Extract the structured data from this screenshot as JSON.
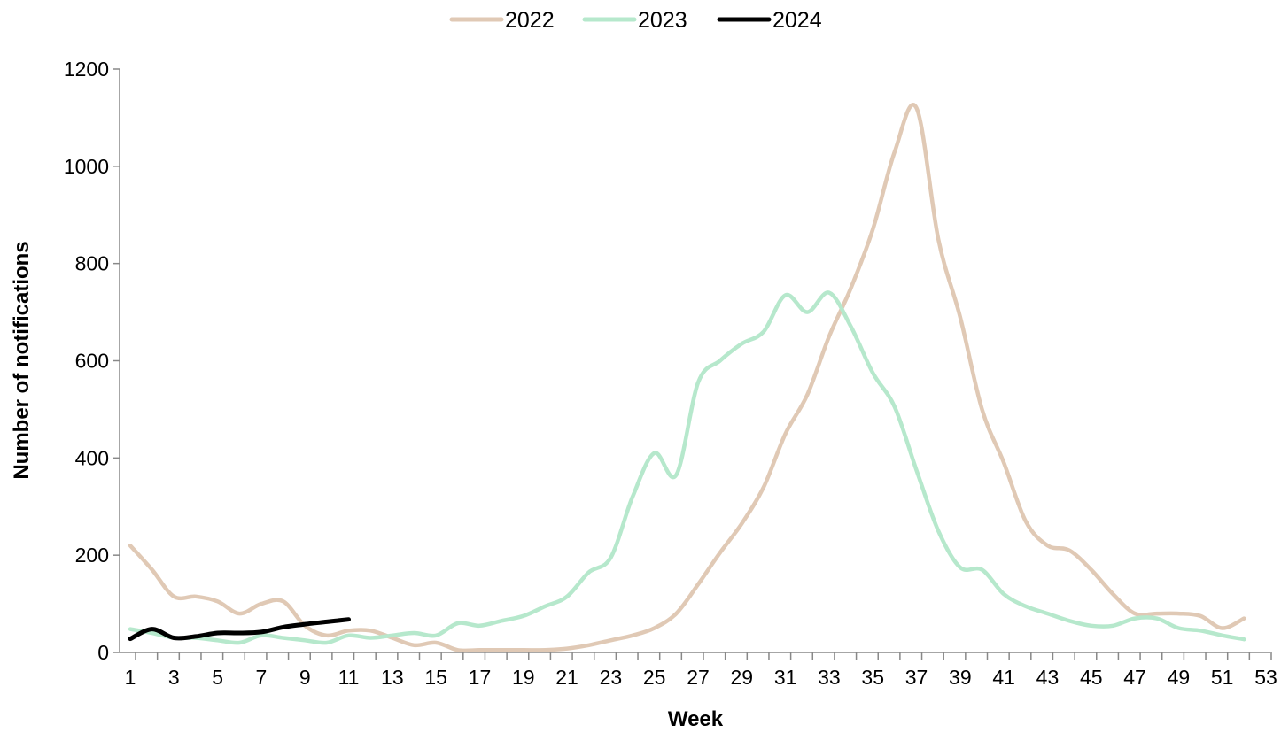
{
  "chart_data": {
    "type": "line",
    "title": "",
    "xlabel": "Week",
    "ylabel": "Number of notifications",
    "xlim": [
      1,
      53
    ],
    "ylim": [
      0,
      1200
    ],
    "yticks": [
      0,
      200,
      400,
      600,
      800,
      1000,
      1200
    ],
    "xtick_labels": [
      "1",
      "3",
      "5",
      "7",
      "9",
      "11",
      "13",
      "15",
      "17",
      "19",
      "21",
      "23",
      "25",
      "27",
      "29",
      "31",
      "33",
      "35",
      "37",
      "39",
      "41",
      "43",
      "45",
      "47",
      "49",
      "51",
      "53"
    ],
    "grid": false,
    "legend_position": "top",
    "series": [
      {
        "name": "2022",
        "color": "#e0c9b5",
        "x": [
          1,
          2,
          3,
          4,
          5,
          6,
          7,
          8,
          9,
          10,
          11,
          12,
          13,
          14,
          15,
          16,
          17,
          18,
          19,
          20,
          21,
          22,
          23,
          24,
          25,
          26,
          27,
          28,
          29,
          30,
          31,
          32,
          33,
          34,
          35,
          36,
          37,
          38,
          39,
          40,
          41,
          42,
          43,
          44,
          45,
          46,
          47,
          48,
          49,
          50,
          51,
          52
        ],
        "values": [
          220,
          170,
          115,
          115,
          105,
          80,
          100,
          105,
          55,
          35,
          45,
          45,
          30,
          15,
          20,
          5,
          5,
          5,
          5,
          5,
          8,
          15,
          25,
          35,
          50,
          80,
          140,
          205,
          265,
          340,
          450,
          530,
          650,
          750,
          870,
          1030,
          1120,
          850,
          690,
          500,
          390,
          270,
          220,
          210,
          170,
          120,
          80,
          80,
          80,
          75,
          50,
          70
        ]
      },
      {
        "name": "2023",
        "color": "#b6e8cc",
        "x": [
          1,
          2,
          3,
          4,
          5,
          6,
          7,
          8,
          9,
          10,
          11,
          12,
          13,
          14,
          15,
          16,
          17,
          18,
          19,
          20,
          21,
          22,
          23,
          24,
          25,
          26,
          27,
          28,
          29,
          30,
          31,
          32,
          33,
          34,
          35,
          36,
          37,
          38,
          39,
          40,
          41,
          42,
          43,
          44,
          45,
          46,
          47,
          48,
          49,
          50,
          51,
          52
        ],
        "values": [
          48,
          40,
          30,
          30,
          25,
          20,
          35,
          30,
          25,
          20,
          35,
          30,
          35,
          40,
          35,
          60,
          55,
          65,
          75,
          95,
          115,
          165,
          195,
          320,
          410,
          365,
          555,
          600,
          635,
          660,
          735,
          700,
          740,
          670,
          575,
          505,
          375,
          250,
          175,
          170,
          120,
          95,
          80,
          65,
          55,
          55,
          70,
          70,
          50,
          45,
          35,
          27
        ]
      },
      {
        "name": "2024",
        "color": "#000000",
        "x": [
          1,
          2,
          3,
          4,
          5,
          6,
          7,
          8,
          9,
          10,
          11
        ],
        "values": [
          28,
          48,
          30,
          33,
          40,
          40,
          42,
          52,
          58,
          63,
          68
        ]
      }
    ]
  }
}
